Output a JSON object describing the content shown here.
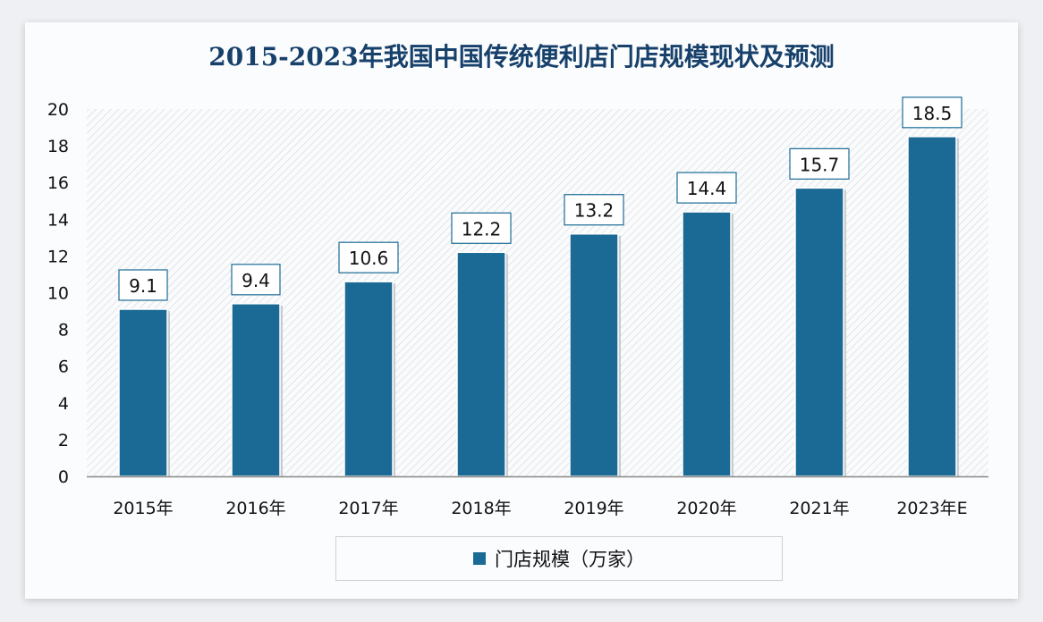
{
  "chart_data": {
    "type": "bar",
    "title": "2015-2023年我国中国传统便利店门店规模现状及预测",
    "categories": [
      "2015年",
      "2016年",
      "2017年",
      "2018年",
      "2019年",
      "2020年",
      "2021年",
      "2023年E"
    ],
    "series": [
      {
        "name": "门店规模（万家）",
        "values": [
          9.1,
          9.4,
          10.6,
          12.2,
          13.2,
          14.4,
          15.7,
          18.5
        ]
      }
    ],
    "ylim": [
      0,
      20
    ],
    "yticks": [
      0,
      2,
      4,
      6,
      8,
      10,
      12,
      14,
      16,
      18,
      20
    ],
    "xlabel": "",
    "ylabel": "",
    "grid": false,
    "legend_position": "bottom",
    "colors": {
      "bar": "#1a6a95",
      "title": "#17416b"
    }
  }
}
